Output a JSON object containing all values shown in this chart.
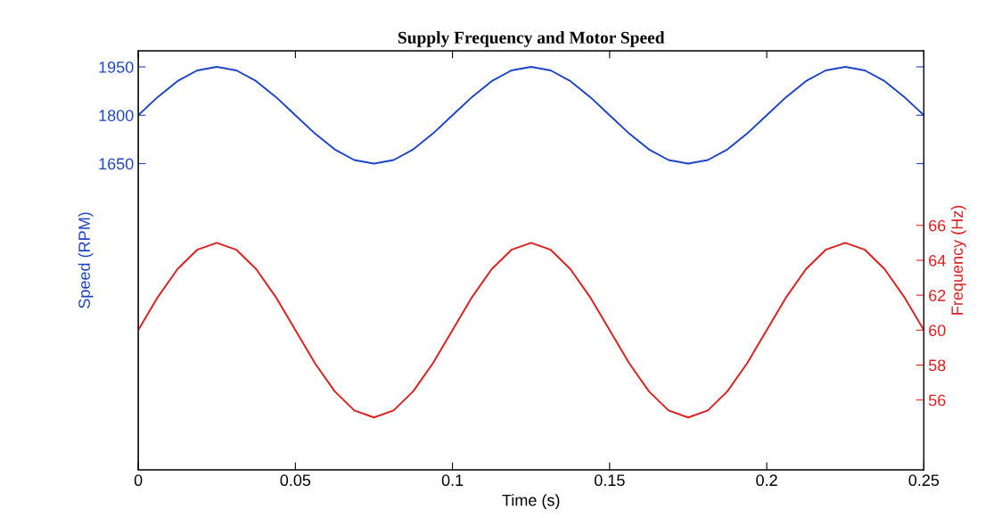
{
  "chart_data": {
    "type": "line",
    "title": "Supply Frequency and Motor Speed",
    "xlabel": "Time (s)",
    "ylabel": "Speed (RPM)",
    "y2label": "Frequency (Hz)",
    "x": [
      0,
      0.00625,
      0.0125,
      0.01875,
      0.025,
      0.03125,
      0.0375,
      0.04375,
      0.05,
      0.05625,
      0.0625,
      0.06875,
      0.075,
      0.08125,
      0.0875,
      0.09375,
      0.1,
      0.10625,
      0.1125,
      0.11875,
      0.125,
      0.13125,
      0.1375,
      0.14375,
      0.15,
      0.15625,
      0.1625,
      0.16875,
      0.175,
      0.18125,
      0.1875,
      0.19375,
      0.2,
      0.20625,
      0.2125,
      0.21875,
      0.225,
      0.23125,
      0.2375,
      0.24375,
      0.25
    ],
    "series": [
      {
        "color": "#1c44c8",
        "values": [
          1800,
          1857,
          1906,
          1939,
          1950,
          1939,
          1906,
          1857,
          1800,
          1743,
          1694,
          1661,
          1650,
          1661,
          1694,
          1743,
          1800,
          1857,
          1906,
          1939,
          1950,
          1939,
          1906,
          1857,
          1800,
          1743,
          1694,
          1661,
          1650,
          1661,
          1694,
          1743,
          1800,
          1857,
          1906,
          1939,
          1950,
          1939,
          1906,
          1857,
          1800
        ]
      },
      {
        "color": "#e01e1e",
        "axis": "y2",
        "values": [
          60,
          61.9,
          63.5,
          64.6,
          65,
          64.6,
          63.5,
          61.9,
          60,
          58.1,
          56.5,
          55.4,
          55,
          55.4,
          56.5,
          58.1,
          60,
          61.9,
          63.5,
          64.6,
          65,
          64.6,
          63.5,
          61.9,
          60,
          58.1,
          56.5,
          55.4,
          55,
          55.4,
          56.5,
          58.1,
          60,
          61.9,
          63.5,
          64.6,
          65,
          64.6,
          63.5,
          61.9,
          60
        ]
      }
    ],
    "xlim": [
      0,
      0.25
    ],
    "xticks": [
      0,
      0.05,
      0.1,
      0.15,
      0.2,
      0.25
    ],
    "ylim": [
      700,
      2000
    ],
    "yticks": [
      1650,
      1800,
      1950
    ],
    "y2lim": [
      52,
      76
    ],
    "y2ticks": [
      56,
      58,
      60,
      62,
      64,
      66
    ],
    "grid": false,
    "legend": false,
    "marker": "none",
    "line_style": "solid"
  }
}
